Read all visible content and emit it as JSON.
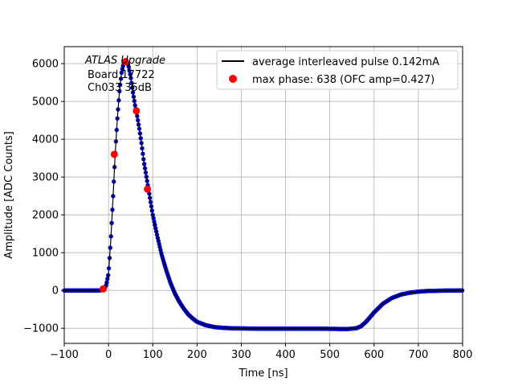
{
  "chart_data": {
    "type": "line",
    "xlabel": "Time [ns]",
    "ylabel": "Amplitude [ADC Counts]",
    "xlim": [
      -100,
      800
    ],
    "ylim": [
      -1400,
      6450
    ],
    "xticks": [
      -100,
      0,
      100,
      200,
      300,
      400,
      500,
      600,
      700,
      800
    ],
    "yticks": [
      -1000,
      0,
      1000,
      2000,
      3000,
      4000,
      5000,
      6000
    ],
    "grid": true,
    "legend_position": "upper-right",
    "annotation": {
      "lines": [
        "ATLAS Upgrade",
        "Board 17722",
        "Ch033 35dB"
      ],
      "position": "upper-left"
    },
    "series": [
      {
        "name": "average interleaved pulse 0.142mA",
        "kind": "line-with-dots",
        "line_color": "#000000",
        "marker_color": "#0000cc",
        "x": [
          -100,
          -80,
          -60,
          -40,
          -20,
          -10,
          -5,
          0,
          5,
          10,
          15,
          20,
          25,
          30,
          35,
          40,
          45,
          50,
          55,
          60,
          65,
          70,
          75,
          80,
          85,
          90,
          95,
          100,
          110,
          120,
          130,
          140,
          150,
          160,
          170,
          180,
          190,
          200,
          220,
          240,
          260,
          280,
          300,
          340,
          380,
          420,
          460,
          500,
          540,
          560,
          570,
          580,
          590,
          600,
          620,
          640,
          660,
          680,
          700,
          720,
          740,
          760,
          780,
          800
        ],
        "y": [
          0,
          0,
          0,
          0,
          0,
          20,
          150,
          450,
          1300,
          2400,
          3600,
          4550,
          5300,
          5800,
          6050,
          6100,
          5950,
          5650,
          5250,
          4900,
          4600,
          4250,
          3850,
          3400,
          3050,
          2700,
          2350,
          2000,
          1450,
          950,
          550,
          200,
          -80,
          -300,
          -480,
          -630,
          -740,
          -830,
          -920,
          -970,
          -990,
          -1000,
          -1005,
          -1010,
          -1010,
          -1010,
          -1010,
          -1015,
          -1020,
          -1000,
          -950,
          -850,
          -720,
          -580,
          -350,
          -200,
          -110,
          -60,
          -30,
          -15,
          -8,
          -4,
          -2,
          0
        ]
      },
      {
        "name": "max phase: 638 (OFC amp=0.427)",
        "kind": "scatter",
        "marker_color": "#ff0000",
        "x": [
          -12,
          13,
          38,
          63,
          88
        ],
        "y": [
          40,
          3600,
          6050,
          4750,
          2680
        ]
      }
    ]
  }
}
